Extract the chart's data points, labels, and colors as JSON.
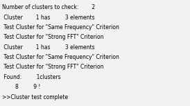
{
  "lines": [
    "Number of clusters to check:        2",
    " Cluster        1 has         3 elements",
    " Test Cluster for \"Same Frequency\" Criterion",
    " Test Cluster for \"Strong FFT\" Criterion",
    " Cluster        1 has         3 elements",
    " Test Cluster for \"Same Frequency\" Criterion",
    " Test Cluster for \"Strong FFT\" Criterion",
    " Found:         1clusters",
    "        8         9 !",
    ">>Cluster test complete"
  ],
  "bg_color": "#f2f2f2",
  "text_color": "#000000",
  "font_size": 5.5,
  "font_family": "DejaVu Sans"
}
